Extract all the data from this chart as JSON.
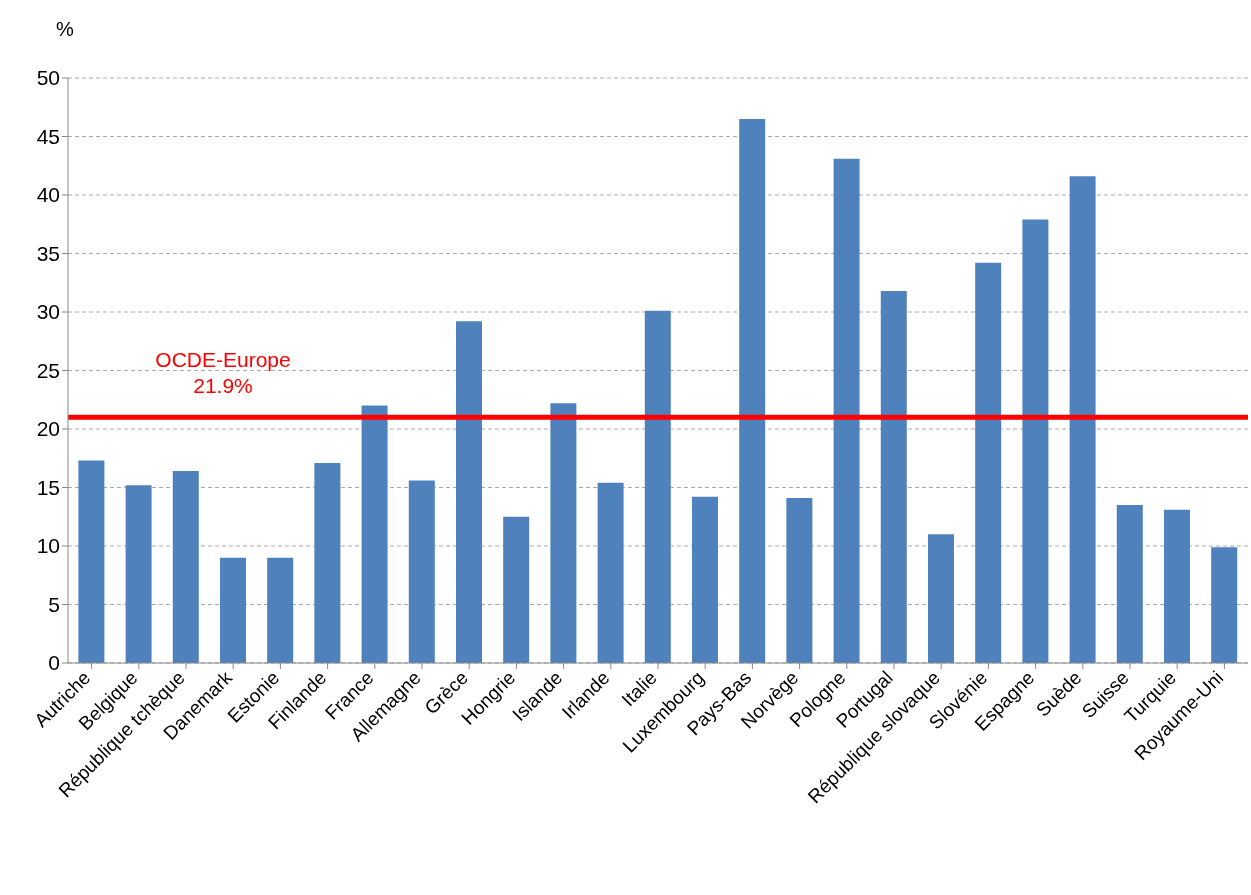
{
  "chart_data": {
    "type": "bar",
    "ylabel": "%",
    "categories": [
      "Autriche",
      "Belgique",
      "République tchèque",
      "Danemark",
      "Estonie",
      "Finlande",
      "France",
      "Allemagne",
      "Grèce",
      "Hongrie",
      "Islande",
      "Irlande",
      "Italie",
      "Luxembourg",
      "Pays-Bas",
      "Norvège",
      "Pologne",
      "Portugal",
      "République slovaque",
      "Slovénie",
      "Espagne",
      "Suède",
      "Suisse",
      "Turquie",
      "Royaume-Uni"
    ],
    "values": [
      17.3,
      15.2,
      16.4,
      9.0,
      9.0,
      17.1,
      22.0,
      15.6,
      29.2,
      12.5,
      22.2,
      15.4,
      30.1,
      14.2,
      46.5,
      14.1,
      43.1,
      31.8,
      11.0,
      34.2,
      37.9,
      41.6,
      13.5,
      13.1,
      9.9
    ],
    "color": "#4f81bd",
    "ylim": [
      0,
      50
    ],
    "yticks": [
      0,
      5,
      10,
      15,
      20,
      25,
      30,
      35,
      40,
      45,
      50
    ],
    "grid": "y",
    "ref_lines": [
      {
        "axis": "y",
        "value": 21,
        "label": "OCDE-Europe 21.9%",
        "color": "#ff0000"
      }
    ]
  }
}
